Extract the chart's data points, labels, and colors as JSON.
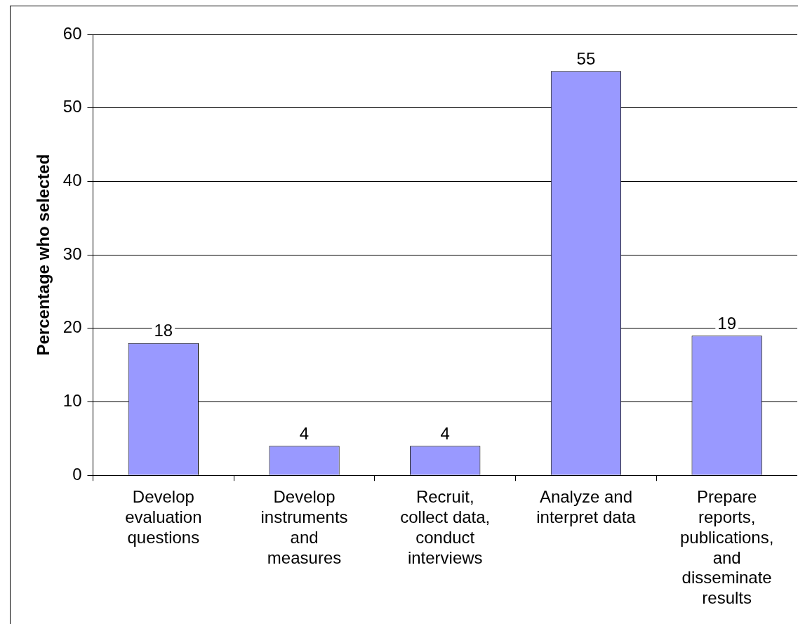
{
  "chart_data": {
    "type": "bar",
    "ylabel": "Percentage who selected",
    "categories": [
      "Develop evaluation questions",
      "Develop instruments and measures",
      "Recruit, collect data, conduct interviews",
      "Analyze and interpret data",
      "Prepare reports, publications, and disseminate results"
    ],
    "values": [
      18,
      4,
      4,
      55,
      19
    ],
    "color": "#9999ff",
    "ylim": [
      0,
      60
    ],
    "yticks": [
      0,
      10,
      20,
      30,
      40,
      50,
      60
    ],
    "grid": "y",
    "data_labels": true,
    "legend": false
  }
}
